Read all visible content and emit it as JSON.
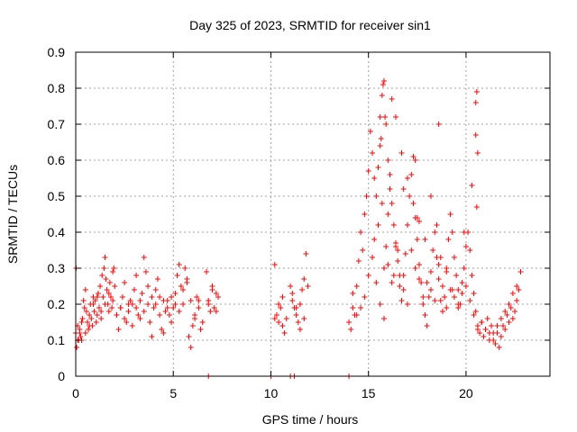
{
  "chart_data": {
    "type": "scatter",
    "title": "Day 325 of 2023, SRMTID for receiver sin1",
    "xlabel": "GPS time / hours",
    "ylabel": "SRMTID / TECUs",
    "xlim": [
      0,
      24.3
    ],
    "ylim": [
      0,
      0.9
    ],
    "xticks": [
      "0",
      "5",
      "10",
      "15",
      "20"
    ],
    "xtick_values": [
      0,
      5,
      10,
      15,
      20
    ],
    "yticks": [
      "0",
      "0.1",
      "0.2",
      "0.3",
      "0.4",
      "0.5",
      "0.6",
      "0.7",
      "0.8",
      "0.9"
    ],
    "ytick_values": [
      0,
      0.1,
      0.2,
      0.3,
      0.4,
      0.5,
      0.6,
      0.7,
      0.8,
      0.9
    ],
    "grid": true,
    "marker": "+",
    "color": "#ff0000",
    "series": [
      {
        "name": "sin1 SRMTID",
        "x": [
          0.0,
          0.05,
          0.1,
          0.15,
          0.2,
          0.25,
          0.3,
          0.35,
          0.4,
          0.45,
          0.5,
          0.55,
          0.6,
          0.65,
          0.7,
          0.75,
          0.8,
          0.85,
          0.9,
          0.95,
          1.0,
          1.05,
          1.1,
          1.15,
          1.2,
          1.25,
          1.3,
          1.35,
          1.4,
          1.45,
          1.5,
          1.55,
          1.6,
          1.65,
          1.7,
          1.75,
          1.8,
          1.85,
          1.9,
          1.95,
          2.0,
          2.1,
          2.2,
          2.3,
          2.4,
          2.5,
          2.6,
          2.7,
          2.8,
          2.9,
          3.0,
          3.1,
          3.2,
          3.3,
          3.4,
          3.5,
          3.6,
          3.7,
          3.8,
          3.9,
          4.0,
          4.1,
          4.2,
          4.3,
          4.4,
          4.5,
          4.6,
          4.7,
          4.8,
          4.9,
          5.0,
          5.1,
          5.2,
          5.3,
          5.4,
          5.5,
          5.6,
          5.7,
          5.8,
          5.9,
          6.0,
          6.1,
          6.2,
          6.3,
          6.4,
          6.5,
          6.7,
          6.8,
          6.9,
          7.0,
          7.1,
          7.2,
          7.3,
          10.2,
          10.3,
          10.4,
          10.5,
          10.6,
          10.7,
          10.8,
          11.0,
          11.1,
          11.2,
          11.3,
          11.4,
          11.5,
          11.6,
          11.7,
          11.8,
          11.9,
          14.0,
          14.1,
          14.2,
          14.3,
          14.4,
          14.5,
          14.6,
          14.7,
          14.8,
          14.9,
          15.0,
          15.1,
          15.2,
          15.3,
          15.4,
          15.5,
          15.6,
          15.7,
          15.8,
          15.9,
          16.0,
          16.1,
          16.2,
          16.3,
          16.4,
          16.5,
          16.6,
          16.7,
          16.8,
          16.9,
          17.0,
          17.1,
          17.2,
          17.3,
          17.4,
          17.5,
          17.6,
          17.7,
          17.8,
          17.9,
          18.0,
          18.1,
          18.2,
          18.3,
          18.4,
          18.5,
          18.6,
          18.7,
          18.8,
          18.9,
          19.0,
          19.1,
          19.2,
          19.3,
          19.4,
          19.5,
          19.6,
          19.7,
          19.8,
          19.9,
          20.0,
          20.1,
          20.2,
          20.3,
          20.4,
          20.5,
          20.6,
          20.7,
          20.8,
          20.9,
          21.0,
          21.1,
          21.2,
          21.3,
          21.4,
          21.5,
          21.6,
          21.7,
          21.8,
          21.9,
          22.0,
          22.1,
          22.2,
          22.3,
          22.4,
          22.5,
          22.6,
          22.7,
          22.8,
          0.02,
          0.1,
          0.2,
          0.3,
          0.5,
          0.7,
          0.9,
          1.1,
          1.3,
          1.5,
          1.7,
          1.9,
          2.1,
          2.3,
          2.5,
          2.7,
          2.9,
          3.1,
          3.3,
          3.5,
          3.7,
          3.9,
          4.1,
          4.3,
          4.5,
          4.7,
          4.9,
          5.1,
          5.3,
          5.5,
          5.7,
          5.9,
          6.1,
          6.3,
          6.8,
          7.0,
          7.2,
          10.2,
          10.4,
          10.6,
          11.1,
          11.3,
          11.5,
          11.7,
          14.2,
          14.4,
          14.6,
          14.8,
          15.0,
          15.2,
          15.4,
          15.6,
          15.8,
          16.0,
          16.2,
          16.4,
          16.6,
          16.8,
          17.0,
          17.2,
          17.4,
          17.6,
          17.8,
          18.0,
          18.2,
          18.4,
          18.6,
          18.8,
          19.0,
          19.2,
          19.4,
          19.6,
          19.8,
          20.0,
          20.2,
          20.4,
          20.6,
          20.8,
          21.0,
          21.2,
          21.4,
          21.6,
          21.8,
          22.0,
          22.2,
          22.4,
          22.6,
          15.3,
          15.5,
          15.7,
          15.8,
          15.9,
          16.0,
          16.1,
          16.3,
          16.5,
          16.7,
          17.0,
          17.3,
          17.6,
          17.9,
          18.2,
          18.5,
          18.7,
          19.0,
          19.3,
          19.6,
          19.9,
          20.3,
          20.5,
          20.55,
          20.6,
          15.6,
          15.65,
          15.75,
          15.85,
          16.2,
          16.4,
          16.8,
          17.4,
          17.5,
          18.6,
          20.5,
          20.55,
          6.8,
          10.0,
          11.0,
          11.2,
          14.0
        ],
        "y": [
          0.12,
          0.08,
          0.14,
          0.1,
          0.13,
          0.11,
          0.15,
          0.16,
          0.21,
          0.19,
          0.24,
          0.18,
          0.15,
          0.13,
          0.17,
          0.2,
          0.16,
          0.14,
          0.22,
          0.18,
          0.21,
          0.15,
          0.17,
          0.23,
          0.19,
          0.25,
          0.16,
          0.28,
          0.22,
          0.3,
          0.33,
          0.27,
          0.24,
          0.2,
          0.18,
          0.26,
          0.22,
          0.19,
          0.29,
          0.3,
          0.25,
          0.17,
          0.13,
          0.19,
          0.22,
          0.26,
          0.15,
          0.18,
          0.21,
          0.2,
          0.24,
          0.28,
          0.17,
          0.16,
          0.23,
          0.33,
          0.29,
          0.2,
          0.15,
          0.11,
          0.19,
          0.24,
          0.27,
          0.22,
          0.13,
          0.12,
          0.18,
          0.21,
          0.17,
          0.15,
          0.19,
          0.23,
          0.28,
          0.31,
          0.25,
          0.2,
          0.3,
          0.27,
          0.11,
          0.08,
          0.14,
          0.17,
          0.22,
          0.19,
          0.13,
          0.15,
          0.29,
          0.21,
          0.18,
          0.25,
          0.19,
          0.23,
          0.22,
          0.31,
          0.17,
          0.15,
          0.19,
          0.14,
          0.12,
          0.16,
          0.25,
          0.21,
          0.19,
          0.17,
          0.15,
          0.2,
          0.24,
          0.27,
          0.34,
          0.25,
          0.15,
          0.13,
          0.19,
          0.17,
          0.25,
          0.32,
          0.4,
          0.35,
          0.45,
          0.5,
          0.57,
          0.68,
          0.62,
          0.55,
          0.5,
          0.58,
          0.72,
          0.78,
          0.82,
          0.7,
          0.6,
          0.56,
          0.48,
          0.42,
          0.37,
          0.32,
          0.25,
          0.21,
          0.28,
          0.34,
          0.42,
          0.5,
          0.56,
          0.61,
          0.44,
          0.38,
          0.31,
          0.26,
          0.2,
          0.17,
          0.14,
          0.22,
          0.29,
          0.35,
          0.4,
          0.33,
          0.27,
          0.21,
          0.18,
          0.22,
          0.3,
          0.38,
          0.45,
          0.4,
          0.33,
          0.28,
          0.24,
          0.2,
          0.23,
          0.3,
          0.36,
          0.4,
          0.35,
          0.28,
          0.23,
          0.18,
          0.14,
          0.12,
          0.15,
          0.11,
          0.13,
          0.16,
          0.12,
          0.14,
          0.1,
          0.09,
          0.12,
          0.08,
          0.11,
          0.14,
          0.13,
          0.17,
          0.15,
          0.19,
          0.16,
          0.18,
          0.21,
          0.24,
          0.29,
          0.3,
          0.1,
          0.12,
          0.1,
          0.12,
          0.14,
          0.2,
          0.22,
          0.18,
          0.2,
          0.23,
          0.21,
          0.17,
          0.19,
          0.16,
          0.2,
          0.14,
          0.19,
          0.21,
          0.18,
          0.25,
          0.22,
          0.2,
          0.17,
          0.21,
          0.19,
          0.22,
          0.2,
          0.18,
          0.24,
          0.26,
          0.21,
          0.16,
          0.21,
          0.2,
          0.24,
          0.18,
          0.16,
          0.2,
          0.22,
          0.23,
          0.19,
          0.13,
          0.16,
          0.23,
          0.17,
          0.19,
          0.22,
          0.28,
          0.33,
          0.26,
          0.2,
          0.16,
          0.31,
          0.26,
          0.36,
          0.28,
          0.24,
          0.2,
          0.35,
          0.3,
          0.27,
          0.22,
          0.26,
          0.24,
          0.21,
          0.31,
          0.25,
          0.19,
          0.24,
          0.22,
          0.2,
          0.26,
          0.25,
          0.21,
          0.17,
          0.13,
          0.15,
          0.13,
          0.1,
          0.12,
          0.14,
          0.16,
          0.18,
          0.2,
          0.23,
          0.25,
          0.38,
          0.42,
          0.48,
          0.3,
          0.36,
          0.45,
          0.52,
          0.28,
          0.35,
          0.62,
          0.55,
          0.48,
          0.43,
          0.38,
          0.5,
          0.42,
          0.33,
          0.29,
          0.24,
          0.19,
          0.4,
          0.53,
          0.67,
          0.79,
          0.62,
          0.64,
          0.66,
          0.81,
          0.72,
          0.77,
          0.72,
          0.52,
          0.6,
          0.44,
          0.7,
          0.76,
          0.47,
          0.0,
          0.0,
          0.0,
          0.0,
          0.0
        ]
      }
    ]
  }
}
